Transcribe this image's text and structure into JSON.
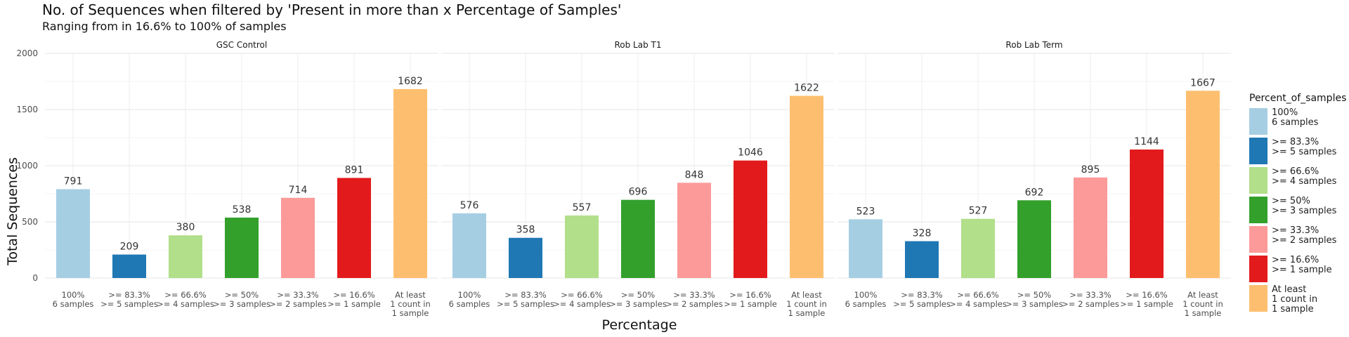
{
  "chart_data": {
    "type": "bar",
    "title": "No. of Sequences when filtered by 'Present in more than x Percentage of Samples'",
    "subtitle": "Ranging from in 16.6% to 100% of samples",
    "xlabel": "Percentage",
    "ylabel": "Total Sequences",
    "ylim": [
      0,
      2000
    ],
    "yticks": [
      0,
      500,
      1000,
      1500,
      2000
    ],
    "grid": true,
    "legend_position": "right",
    "legend_title": "Percent_of_samples",
    "categories": [
      "100%\n6 samples",
      ">= 83.3%\n>= 5 samples",
      ">= 66.6%\n>= 4 samples",
      ">= 50%\n>= 3 samples",
      ">= 33.3%\n>= 2 samples",
      ">= 16.6%\n>= 1 sample",
      "At least\n1 count in\n1 sample"
    ],
    "legend_labels": [
      "100%\n6 samples",
      ">= 83.3%\n>= 5 samples",
      ">= 66.6%\n>= 4 samples",
      ">= 50%\n>= 3 samples",
      ">= 33.3%\n>= 2 samples",
      ">= 16.6%\n>= 1 sample",
      "At least\n1 count in\n1 sample"
    ],
    "colors": [
      "#A6CEE3",
      "#1F78B4",
      "#B2DF8A",
      "#33A02C",
      "#FB9A99",
      "#E31A1C",
      "#FDBF6F"
    ],
    "panels": [
      {
        "name": "GSC Control",
        "values": [
          791,
          209,
          380,
          538,
          714,
          891,
          1682
        ]
      },
      {
        "name": "Rob Lab T1",
        "values": [
          576,
          358,
          557,
          696,
          848,
          1046,
          1622
        ]
      },
      {
        "name": "Rob Lab Term",
        "values": [
          523,
          328,
          527,
          692,
          895,
          1144,
          1667
        ]
      }
    ]
  }
}
